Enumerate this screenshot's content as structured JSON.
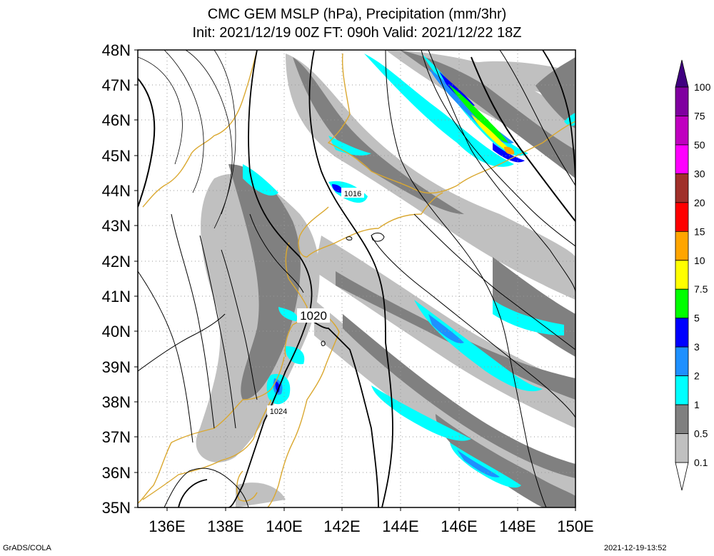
{
  "header": {
    "title_line1": "CMC GEM MSLP (hPa), Precipitation (mm/3hr)",
    "title_line2": "Init: 2021/12/19 00Z  FT: 090h  Valid: 2021/12/22 18Z"
  },
  "axes": {
    "lat_labels": [
      "48N",
      "47N",
      "46N",
      "45N",
      "44N",
      "43N",
      "42N",
      "41N",
      "40N",
      "39N",
      "38N",
      "37N",
      "36N",
      "35N"
    ],
    "lon_labels": [
      "136E",
      "138E",
      "140E",
      "142E",
      "144E",
      "146E",
      "148E",
      "150E"
    ],
    "lat_range": [
      35,
      48
    ],
    "lon_range": [
      135,
      150
    ]
  },
  "isobar_labels": [
    "1016",
    "1020",
    "1024"
  ],
  "colorbar": {
    "unit": "mm/3hr",
    "levels": [
      "0.1",
      "0.5",
      "1",
      "2",
      "3",
      "5",
      "7.5",
      "10",
      "15",
      "20",
      "30",
      "50",
      "75",
      "100"
    ],
    "colors": [
      "#ffffff",
      "#c0c0c0",
      "#808080",
      "#00ffff",
      "#1e90ff",
      "#0000ff",
      "#00ff00",
      "#ffff00",
      "#ffa500",
      "#ff0000",
      "#a0302a",
      "#ff00ff",
      "#c000c0",
      "#8000a0",
      "#400080"
    ]
  },
  "footer": {
    "left": "GrADS/COLA",
    "right": "2021-12-19-13:52"
  }
}
